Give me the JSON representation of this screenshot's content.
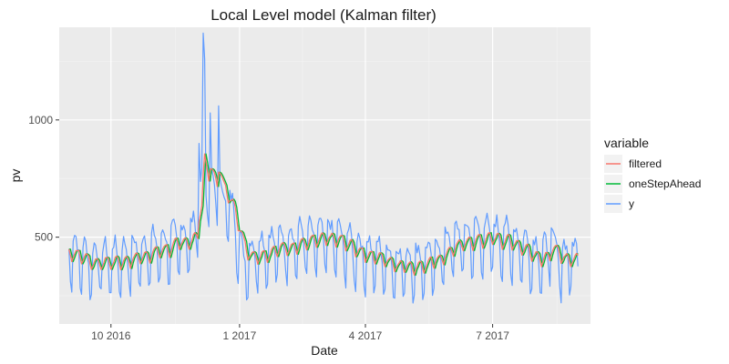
{
  "chart_data": {
    "type": "line",
    "title": "Local Level model (Kalman filter)",
    "xlabel": "Date",
    "ylabel": "pv",
    "x_domain": [
      "2016-08-25",
      "2017-09-09"
    ],
    "ylim": [
      130,
      1395
    ],
    "x_ticks": [
      {
        "date": "2016-10-01",
        "label": "10 2016"
      },
      {
        "date": "2017-01-01",
        "label": "1 2017"
      },
      {
        "date": "2017-04-01",
        "label": "4 2017"
      },
      {
        "date": "2017-07-01",
        "label": "7 2017"
      }
    ],
    "y_ticks": [
      500,
      1000
    ],
    "grid": true,
    "legend": {
      "title": "variable",
      "position": "right",
      "entries": [
        {
          "name": "filtered",
          "color": "#F8766D"
        },
        {
          "name": "oneStepAhead",
          "color": "#00BA38"
        },
        {
          "name": "y",
          "color": "#619CFF"
        }
      ]
    },
    "series_params": {
      "start_date": "2016-09-01",
      "end_date": "2017-08-31",
      "level_knots": [
        [
          "2016-09-01",
          430
        ],
        [
          "2016-09-15",
          370
        ],
        [
          "2016-10-10",
          385
        ],
        [
          "2016-10-25",
          415
        ],
        [
          "2016-11-15",
          450
        ],
        [
          "2016-12-01",
          490
        ],
        [
          "2016-12-05",
          700
        ],
        [
          "2016-12-22",
          620
        ],
        [
          "2016-12-28",
          560
        ],
        [
          "2017-01-03",
          370
        ],
        [
          "2017-01-15",
          420
        ],
        [
          "2017-02-10",
          460
        ],
        [
          "2017-03-10",
          470
        ],
        [
          "2017-03-25",
          420
        ],
        [
          "2017-04-20",
          370
        ],
        [
          "2017-05-01",
          360
        ],
        [
          "2017-05-20",
          380
        ],
        [
          "2017-06-01",
          450
        ],
        [
          "2017-06-25",
          480
        ],
        [
          "2017-07-10",
          470
        ],
        [
          "2017-08-01",
          400
        ],
        [
          "2017-08-15",
          380
        ],
        [
          "2017-08-31",
          390
        ]
      ],
      "weekly_amplitude": 180,
      "spikes": [
        [
          "2016-11-30",
          560
        ],
        [
          "2016-12-06",
          1370
        ],
        [
          "2016-12-07",
          1260
        ],
        [
          "2016-12-11",
          1030
        ],
        [
          "2016-12-17",
          1060
        ],
        [
          "2016-12-03",
          900
        ],
        [
          "2017-08-12",
          540
        ],
        [
          "2017-08-13",
          530
        ]
      ]
    }
  }
}
